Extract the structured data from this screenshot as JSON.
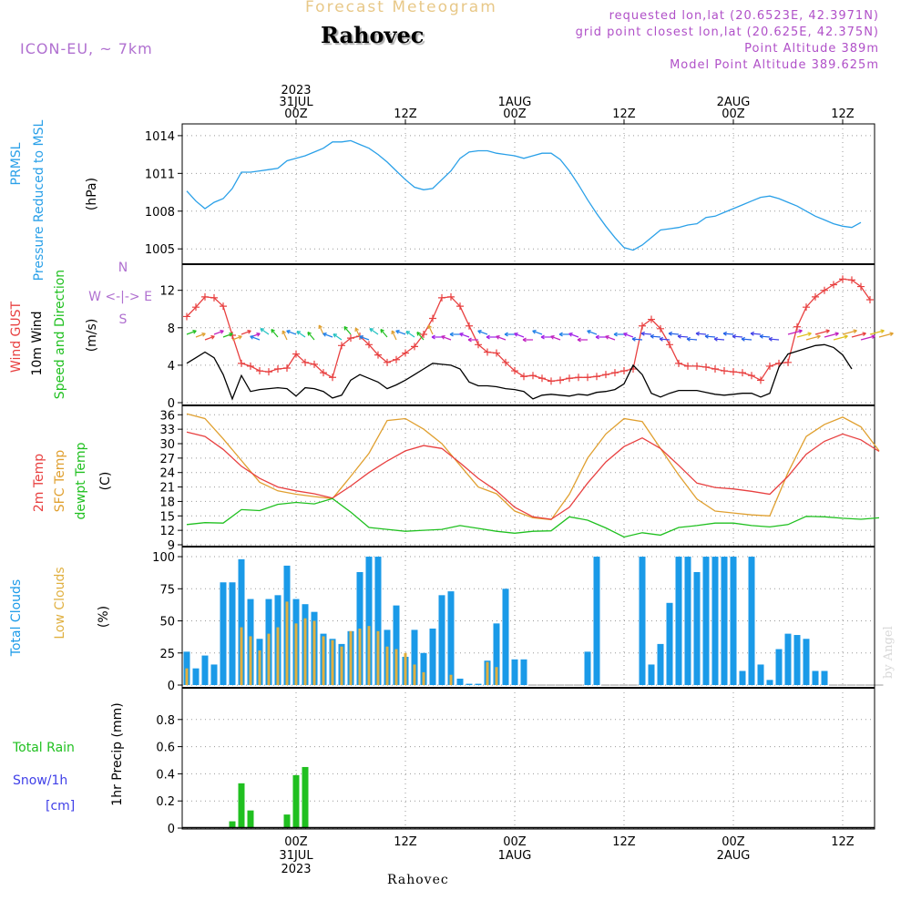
{
  "header": {
    "subtitle": "Forecast Meteogram",
    "station": "Rahovec",
    "model": "ICON-EU, ~ 7km",
    "requested": "requested lon,lat (20.6523E, 42.3971N)",
    "grid_point": "grid point closest lon,lat (20.625E, 42.375N)",
    "point_altitude": "Point Altitude 389m",
    "model_altitude": "Model Point Altitude 389.625m",
    "watermark": "by Angel",
    "bottom_station": "Rahovec"
  },
  "colors": {
    "pressure": "#2aa0e8",
    "gust": "#e84040",
    "wind": "#000000",
    "t2m": "#e84040",
    "sfc": "#e0a030",
    "dewpt": "#20c020",
    "total_clouds": "#1a9ae8",
    "low_clouds": "#e0b040",
    "rain": "#20c020",
    "snow": "#4040e8"
  },
  "time_axis": {
    "top": [
      {
        "h": 12,
        "lines": [
          "2023",
          "31JUL",
          "00Z"
        ]
      },
      {
        "h": 24,
        "lines": [
          "12Z"
        ]
      },
      {
        "h": 36,
        "lines": [
          "1AUG",
          "00Z"
        ]
      },
      {
        "h": 48,
        "lines": [
          "12Z"
        ]
      },
      {
        "h": 60,
        "lines": [
          "2AUG",
          "00Z"
        ]
      },
      {
        "h": 72,
        "lines": [
          "12Z"
        ]
      }
    ],
    "bottom": [
      {
        "h": 12,
        "lines": [
          "00Z",
          "31JUL",
          "2023"
        ]
      },
      {
        "h": 24,
        "lines": [
          "12Z"
        ]
      },
      {
        "h": 36,
        "lines": [
          "00Z",
          "1AUG"
        ]
      },
      {
        "h": 48,
        "lines": [
          "12Z"
        ]
      },
      {
        "h": 60,
        "lines": [
          "00Z",
          "2AUG"
        ]
      },
      {
        "h": 72,
        "lines": [
          "12Z"
        ]
      }
    ]
  },
  "panels": {
    "pressure": {
      "labels": [
        "PRMSL",
        "Pressure Reduced to MSL"
      ],
      "unit": "(hPa)",
      "ylim": [
        1004,
        1014.5
      ],
      "ticks": [
        1005,
        1008,
        1011,
        1014
      ]
    },
    "wind": {
      "labels": [
        "Wind GUST",
        "10m Wind",
        "Speed and Direction"
      ],
      "unit": "(m/s)",
      "ylim": [
        0,
        14.5
      ],
      "ticks": [
        0,
        4,
        8,
        12
      ],
      "compass": "W <-|-> E",
      "compass_v": [
        "N",
        "S"
      ]
    },
    "temp": {
      "labels": [
        "2m Temp",
        "SFC Temp",
        "dewpt Temp"
      ],
      "unit": "(C)",
      "ylim": [
        9,
        37
      ],
      "ticks": [
        9,
        12,
        15,
        18,
        21,
        24,
        27,
        30,
        33,
        36
      ]
    },
    "clouds": {
      "labels": [
        "Total Clouds",
        "Low Clouds"
      ],
      "unit": "(%)",
      "ylim": [
        0,
        105
      ],
      "ticks": [
        0,
        25,
        50,
        75,
        100
      ]
    },
    "precip": {
      "labels": [
        "Total  Rain",
        "Snow/1h",
        "[cm]"
      ],
      "unit": "1hr Precip (mm)",
      "ylim": [
        0,
        1.0
      ],
      "ticks": [
        0,
        0.2,
        0.4,
        0.6,
        0.8
      ]
    }
  },
  "chart_data": [
    {
      "type": "line",
      "name": "PRMSL",
      "x_hours": [
        0,
        1,
        2,
        3,
        4,
        5,
        6,
        7,
        8,
        9,
        10,
        11,
        12,
        13,
        14,
        15,
        16,
        17,
        18,
        19,
        20,
        21,
        22,
        23,
        24,
        25,
        26,
        27,
        28,
        29,
        30,
        31,
        32,
        33,
        34,
        35,
        36,
        37,
        38,
        39,
        40,
        41,
        42,
        43,
        44,
        45,
        46,
        47,
        48,
        49,
        50,
        51,
        52,
        53,
        54,
        55,
        56,
        57,
        58,
        59,
        60,
        61,
        62,
        63,
        64,
        65,
        66,
        67,
        68,
        69,
        70,
        71,
        72,
        73,
        74,
        75,
        76
      ],
      "values": [
        1009.6,
        1008.8,
        1008.2,
        1008.7,
        1009.0,
        1009.8,
        1011.1,
        1011.1,
        1011.2,
        1011.3,
        1011.4,
        1012.0,
        1012.2,
        1012.4,
        1012.7,
        1013.0,
        1013.5,
        1013.5,
        1013.6,
        1013.3,
        1013.0,
        1012.5,
        1011.9,
        1011.2,
        1010.5,
        1009.9,
        1009.7,
        1009.8,
        1010.5,
        1011.2,
        1012.2,
        1012.7,
        1012.8,
        1012.8,
        1012.6,
        1012.5,
        1012.4,
        1012.2,
        1012.4,
        1012.6,
        1012.6,
        1012.1,
        1011.2,
        1010.1,
        1008.9,
        1007.8,
        1006.8,
        1005.9,
        1005.1,
        1004.9,
        1005.3,
        1005.9,
        1006.5,
        1006.6,
        1006.7,
        1006.9,
        1007.0,
        1007.5,
        1007.6,
        1007.9,
        1008.2,
        1008.5,
        1008.8,
        1009.1,
        1009.2,
        1009.0,
        1008.7,
        1008.4,
        1008.0,
        1007.6,
        1007.3,
        1007.0,
        1006.8,
        1006.7,
        1007.1,
        null,
        null
      ]
    },
    {
      "type": "line",
      "name": "Wind GUST",
      "x_hours": [
        0,
        1,
        2,
        3,
        4,
        5,
        6,
        7,
        8,
        9,
        10,
        11,
        12,
        13,
        14,
        15,
        16,
        17,
        18,
        19,
        20,
        21,
        22,
        23,
        24,
        25,
        26,
        27,
        28,
        29,
        30,
        31,
        32,
        33,
        34,
        35,
        36,
        37,
        38,
        39,
        40,
        41,
        42,
        43,
        44,
        45,
        46,
        47,
        48,
        49,
        50,
        51,
        52,
        53,
        54,
        55,
        56,
        57,
        58,
        59,
        60,
        61,
        62,
        63,
        64,
        65,
        66,
        67,
        68,
        69,
        70,
        71,
        72,
        73,
        74,
        75,
        76
      ],
      "values": [
        9.2,
        10.2,
        11.3,
        11.2,
        10.3,
        7.2,
        4.2,
        3.9,
        3.4,
        3.3,
        3.6,
        3.7,
        5.2,
        4.3,
        4.1,
        3.2,
        2.7,
        6.1,
        6.9,
        7.1,
        6.2,
        5.1,
        4.3,
        4.6,
        5.3,
        6.0,
        7.3,
        9.0,
        11.2,
        11.3,
        10.3,
        8.2,
        6.2,
        5.4,
        5.3,
        4.3,
        3.4,
        2.8,
        2.9,
        2.6,
        2.3,
        2.4,
        2.6,
        2.7,
        2.7,
        2.8,
        3.0,
        3.2,
        3.4,
        3.6,
        8.2,
        8.9,
        7.9,
        6.2,
        4.2,
        3.9,
        3.9,
        3.8,
        3.6,
        3.4,
        3.3,
        3.2,
        2.9,
        2.4,
        3.9,
        4.2,
        4.3,
        8.1,
        10.2,
        11.3,
        12.0,
        12.6,
        13.2,
        13.1,
        12.4,
        11.0,
        null
      ]
    },
    {
      "type": "line",
      "name": "10m Wind",
      "x_hours": [
        0,
        1,
        2,
        3,
        4,
        5,
        6,
        7,
        8,
        9,
        10,
        11,
        12,
        13,
        14,
        15,
        16,
        17,
        18,
        19,
        20,
        21,
        22,
        23,
        24,
        25,
        26,
        27,
        28,
        29,
        30,
        31,
        32,
        33,
        34,
        35,
        36,
        37,
        38,
        39,
        40,
        41,
        42,
        43,
        44,
        45,
        46,
        47,
        48,
        49,
        50,
        51,
        52,
        53,
        54,
        55,
        56,
        57,
        58,
        59,
        60,
        61,
        62,
        63,
        64,
        65,
        66,
        67,
        68,
        69,
        70,
        71,
        72,
        73,
        74,
        75,
        76
      ],
      "values": [
        4.2,
        4.8,
        5.4,
        4.8,
        3.0,
        0.4,
        2.9,
        1.2,
        1.4,
        1.5,
        1.6,
        1.5,
        0.7,
        1.6,
        1.5,
        1.2,
        0.5,
        0.8,
        2.4,
        3.0,
        2.6,
        2.2,
        1.5,
        1.9,
        2.4,
        3.0,
        3.6,
        4.2,
        4.1,
        4.0,
        3.6,
        2.2,
        1.8,
        1.8,
        1.7,
        1.5,
        1.4,
        1.2,
        0.4,
        0.8,
        0.9,
        0.8,
        0.7,
        0.9,
        0.8,
        1.1,
        1.2,
        1.4,
        2.0,
        4.0,
        3.0,
        1.0,
        0.6,
        1.0,
        1.3,
        1.3,
        1.3,
        1.1,
        0.9,
        0.8,
        0.9,
        1.0,
        1.0,
        0.6,
        1.0,
        3.8,
        5.2,
        5.5,
        5.8,
        6.1,
        6.2,
        5.9,
        5.1,
        3.6,
        null,
        null,
        null
      ]
    },
    {
      "type": "line",
      "name": "2m Temp",
      "x_hours": [
        0,
        2,
        4,
        6,
        8,
        10,
        12,
        14,
        16,
        18,
        20,
        22,
        24,
        26,
        28,
        30,
        32,
        34,
        36,
        38,
        40,
        42,
        44,
        46,
        48,
        50,
        52,
        54,
        56,
        58,
        60,
        62,
        64,
        66,
        68,
        70,
        72,
        74,
        76
      ],
      "values": [
        32.4,
        31.5,
        28.8,
        25.3,
        22.8,
        21.0,
        20.2,
        19.6,
        18.7,
        21.2,
        24.0,
        26.4,
        28.5,
        29.6,
        29.0,
        26.0,
        22.8,
        20.2,
        16.8,
        14.8,
        14.3,
        16.8,
        21.8,
        26.2,
        29.4,
        31.2,
        29.0,
        25.5,
        21.8,
        20.9,
        20.6,
        20.1,
        19.5,
        23.2,
        27.8,
        30.5,
        32.0,
        30.8,
        28.4
      ]
    },
    {
      "type": "line",
      "name": "SFC Temp",
      "x_hours": [
        0,
        2,
        4,
        6,
        8,
        10,
        12,
        14,
        16,
        18,
        20,
        22,
        24,
        26,
        28,
        30,
        32,
        34,
        36,
        38,
        40,
        42,
        44,
        46,
        48,
        50,
        52,
        54,
        56,
        58,
        60,
        62,
        64,
        66,
        68,
        70,
        72,
        74,
        76
      ],
      "values": [
        36.2,
        35.2,
        31.0,
        26.5,
        22.0,
        20.2,
        19.5,
        19.0,
        18.6,
        23.2,
        28.0,
        34.8,
        35.2,
        33.0,
        30.0,
        25.5,
        21.0,
        19.6,
        16.0,
        14.6,
        14.2,
        19.5,
        27.0,
        32.0,
        35.2,
        34.6,
        29.0,
        23.5,
        18.5,
        16.0,
        15.6,
        15.2,
        15.0,
        24.0,
        31.5,
        34.0,
        35.5,
        33.5,
        28.5
      ]
    },
    {
      "type": "line",
      "name": "dewpt Temp",
      "x_hours": [
        0,
        2,
        4,
        6,
        8,
        10,
        12,
        14,
        16,
        18,
        20,
        22,
        24,
        26,
        28,
        30,
        32,
        34,
        36,
        38,
        40,
        42,
        44,
        46,
        48,
        50,
        52,
        54,
        56,
        58,
        60,
        62,
        64,
        66,
        68,
        70,
        72,
        74,
        76
      ],
      "values": [
        13.2,
        13.6,
        13.5,
        16.3,
        16.1,
        17.4,
        17.8,
        17.5,
        18.6,
        15.8,
        12.6,
        12.2,
        11.8,
        12.0,
        12.2,
        13.0,
        12.4,
        11.8,
        11.4,
        11.8,
        11.9,
        14.8,
        14.1,
        12.5,
        10.6,
        11.5,
        11.0,
        12.6,
        13.0,
        13.5,
        13.5,
        13.0,
        12.7,
        13.2,
        14.9,
        14.8,
        14.5,
        14.3,
        14.6
      ]
    },
    {
      "type": "bar",
      "name": "Total Clouds",
      "x_hours": [
        0,
        1,
        2,
        3,
        4,
        5,
        6,
        7,
        8,
        9,
        10,
        11,
        12,
        13,
        14,
        15,
        16,
        17,
        18,
        19,
        20,
        21,
        22,
        23,
        24,
        25,
        26,
        27,
        28,
        29,
        30,
        31,
        32,
        33,
        34,
        35,
        36,
        37,
        38,
        39,
        40,
        41,
        42,
        43,
        44,
        45,
        46,
        47,
        48,
        49,
        50,
        51,
        52,
        53,
        54,
        55,
        56,
        57,
        58,
        59,
        60,
        61,
        62,
        63,
        64,
        65,
        66,
        67,
        68,
        69,
        70,
        71,
        72,
        73,
        74,
        75,
        76
      ],
      "values": [
        26,
        13,
        23,
        16,
        80,
        80,
        98,
        67,
        36,
        67,
        70,
        93,
        67,
        63,
        57,
        40,
        36,
        32,
        42,
        88,
        100,
        100,
        43,
        62,
        22,
        43,
        25,
        44,
        70,
        73,
        5,
        1,
        1,
        19,
        48,
        75,
        20,
        20,
        0,
        0,
        0,
        0,
        0,
        0,
        26,
        100,
        0,
        0,
        0,
        0,
        100,
        16,
        32,
        64,
        100,
        100,
        88,
        100,
        100,
        100,
        100,
        11,
        100,
        16,
        4,
        28,
        40,
        39,
        36,
        11,
        11,
        0,
        0,
        0,
        0,
        0,
        0
      ]
    },
    {
      "type": "bar",
      "name": "Low Clouds",
      "x_hours": [
        0,
        1,
        2,
        3,
        4,
        5,
        6,
        7,
        8,
        9,
        10,
        11,
        12,
        13,
        14,
        15,
        16,
        17,
        18,
        19,
        20,
        21,
        22,
        23,
        24,
        25,
        26,
        27,
        28,
        29,
        30,
        31,
        32,
        33,
        34,
        35,
        36,
        37,
        38,
        39,
        40,
        41,
        42,
        43,
        44,
        45,
        46,
        47,
        48,
        49,
        50,
        51,
        52,
        53,
        54,
        55,
        56,
        57,
        58,
        59,
        60,
        61,
        62,
        63,
        64,
        65,
        66,
        67,
        68,
        69,
        70,
        71,
        72,
        73,
        74,
        75,
        76
      ],
      "values": [
        13,
        0,
        0,
        0,
        0,
        0,
        45,
        38,
        27,
        40,
        45,
        65,
        48,
        52,
        50,
        38,
        35,
        30,
        42,
        44,
        46,
        42,
        30,
        28,
        25,
        16,
        10,
        0,
        0,
        8,
        0,
        0,
        0,
        18,
        14,
        0,
        0,
        0,
        0,
        0,
        0,
        0,
        0,
        0,
        0,
        0,
        0,
        0,
        0,
        0,
        0,
        0,
        0,
        0,
        0,
        0,
        0,
        0,
        0,
        0,
        0,
        0,
        0,
        0,
        0,
        0,
        0,
        0,
        0,
        0,
        0,
        0,
        0,
        0,
        0,
        0,
        0
      ]
    },
    {
      "type": "bar",
      "name": "1hr Precip",
      "x_hours": [
        5,
        6,
        7,
        11,
        12,
        13
      ],
      "values": [
        0.05,
        0.33,
        0.13,
        0.1,
        0.39,
        0.45
      ]
    }
  ]
}
